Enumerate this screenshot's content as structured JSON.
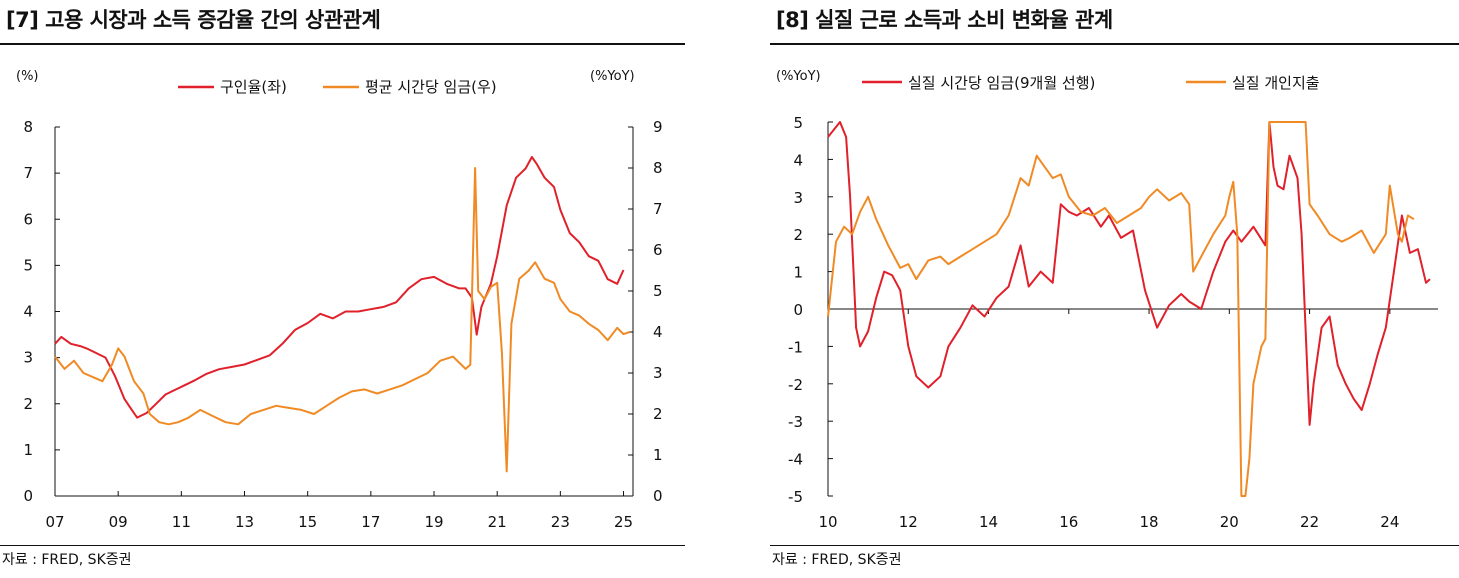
{
  "left": {
    "title": "[7] 고용 시장과 소득 증감율 간의 상관관계",
    "source": "자료 : FRED, SK증권",
    "chart_data": {
      "type": "line",
      "unit_left": "(%)",
      "unit_right": "(%YoY)",
      "ylim_left": [
        0,
        8
      ],
      "ylim_right": [
        0,
        9
      ],
      "xlim": [
        2007,
        2025.3
      ],
      "x_ticks": [
        "07",
        "09",
        "11",
        "13",
        "15",
        "17",
        "19",
        "21",
        "23",
        "25"
      ],
      "x_tick_values": [
        2007,
        2009,
        2011,
        2013,
        2015,
        2017,
        2019,
        2021,
        2023,
        2025
      ],
      "y_ticks_left": [
        "0",
        "1",
        "2",
        "3",
        "4",
        "5",
        "6",
        "7",
        "8"
      ],
      "y_ticks_right": [
        "0",
        "1",
        "2",
        "3",
        "4",
        "5",
        "6",
        "7",
        "8",
        "9"
      ],
      "series": [
        {
          "name": "구인율(좌)",
          "axis": "left",
          "color": "#e0202b",
          "x": [
            2007.0,
            2007.2,
            2007.5,
            2007.8,
            2008.0,
            2008.3,
            2008.6,
            2008.9,
            2009.2,
            2009.4,
            2009.6,
            2009.9,
            2010.2,
            2010.5,
            2010.8,
            2011.1,
            2011.4,
            2011.8,
            2012.2,
            2012.6,
            2013.0,
            2013.4,
            2013.8,
            2014.2,
            2014.6,
            2015.0,
            2015.4,
            2015.8,
            2016.2,
            2016.6,
            2017.0,
            2017.4,
            2017.8,
            2018.2,
            2018.6,
            2019.0,
            2019.4,
            2019.8,
            2020.0,
            2020.2,
            2020.35,
            2020.5,
            2020.8,
            2021.0,
            2021.3,
            2021.6,
            2021.9,
            2022.1,
            2022.25,
            2022.5,
            2022.8,
            2023.0,
            2023.3,
            2023.6,
            2023.9,
            2024.2,
            2024.5,
            2024.8,
            2025.0
          ],
          "values": [
            3.3,
            3.45,
            3.3,
            3.25,
            3.2,
            3.1,
            3.0,
            2.6,
            2.1,
            1.9,
            1.7,
            1.8,
            2.0,
            2.2,
            2.3,
            2.4,
            2.5,
            2.65,
            2.75,
            2.8,
            2.85,
            2.95,
            3.05,
            3.3,
            3.6,
            3.75,
            3.95,
            3.85,
            4.0,
            4.0,
            4.05,
            4.1,
            4.2,
            4.5,
            4.7,
            4.75,
            4.6,
            4.5,
            4.5,
            4.3,
            3.5,
            4.1,
            4.6,
            5.2,
            6.3,
            6.9,
            7.1,
            7.35,
            7.2,
            6.9,
            6.7,
            6.2,
            5.7,
            5.5,
            5.2,
            5.1,
            4.7,
            4.6,
            4.9
          ]
        },
        {
          "name": "평균 시간당 임금(우)",
          "axis": "right",
          "color": "#f08a24",
          "x": [
            2007.0,
            2007.3,
            2007.6,
            2007.9,
            2008.2,
            2008.5,
            2008.8,
            2009.0,
            2009.2,
            2009.5,
            2009.8,
            2010.0,
            2010.3,
            2010.6,
            2010.9,
            2011.2,
            2011.6,
            2012.0,
            2012.4,
            2012.8,
            2013.2,
            2013.6,
            2014.0,
            2014.4,
            2014.8,
            2015.2,
            2015.6,
            2016.0,
            2016.4,
            2016.8,
            2017.2,
            2017.6,
            2018.0,
            2018.4,
            2018.8,
            2019.2,
            2019.6,
            2020.0,
            2020.15,
            2020.3,
            2020.4,
            2020.6,
            2020.8,
            2021.0,
            2021.15,
            2021.3,
            2021.45,
            2021.7,
            2022.0,
            2022.2,
            2022.5,
            2022.8,
            2023.0,
            2023.3,
            2023.6,
            2023.9,
            2024.2,
            2024.5,
            2024.8,
            2025.0,
            2025.2
          ],
          "values": [
            3.4,
            3.1,
            3.3,
            3.0,
            2.9,
            2.8,
            3.2,
            3.6,
            3.4,
            2.8,
            2.5,
            2.0,
            1.8,
            1.75,
            1.8,
            1.9,
            2.1,
            1.95,
            1.8,
            1.75,
            2.0,
            2.1,
            2.2,
            2.15,
            2.1,
            2.0,
            2.2,
            2.4,
            2.55,
            2.6,
            2.5,
            2.6,
            2.7,
            2.85,
            3.0,
            3.3,
            3.4,
            3.1,
            3.2,
            8.0,
            5.0,
            4.8,
            5.1,
            5.2,
            3.5,
            0.6,
            4.2,
            5.3,
            5.5,
            5.7,
            5.3,
            5.2,
            4.8,
            4.5,
            4.4,
            4.2,
            4.05,
            3.8,
            4.1,
            3.95,
            4.0
          ]
        }
      ]
    }
  },
  "right": {
    "title": "[8] 실질 근로 소득과 소비 변화율 관계",
    "source": "자료 : FRED, SK증권",
    "chart_data": {
      "type": "line",
      "unit_left": "(%YoY)",
      "ylim": [
        -5,
        5
      ],
      "xlim": [
        2010,
        2025.2
      ],
      "x_ticks": [
        "10",
        "12",
        "14",
        "16",
        "18",
        "20",
        "22",
        "24"
      ],
      "x_tick_values": [
        2010,
        2012,
        2014,
        2016,
        2018,
        2020,
        2022,
        2024
      ],
      "y_ticks": [
        "-5",
        "-4",
        "-3",
        "-2",
        "-1",
        "0",
        "1",
        "2",
        "3",
        "4",
        "5"
      ],
      "series": [
        {
          "name": "실질 시간당 임금(9개월 선행)",
          "color": "#e0202b",
          "x": [
            2010.0,
            2010.15,
            2010.3,
            2010.45,
            2010.55,
            2010.7,
            2010.8,
            2011.0,
            2011.2,
            2011.4,
            2011.6,
            2011.8,
            2012.0,
            2012.2,
            2012.5,
            2012.8,
            2013.0,
            2013.3,
            2013.6,
            2013.9,
            2014.2,
            2014.5,
            2014.8,
            2015.0,
            2015.3,
            2015.6,
            2015.8,
            2016.0,
            2016.2,
            2016.5,
            2016.8,
            2017.0,
            2017.3,
            2017.6,
            2017.9,
            2018.2,
            2018.5,
            2018.8,
            2019.0,
            2019.3,
            2019.6,
            2019.9,
            2020.1,
            2020.3,
            2020.6,
            2020.9,
            2021.0,
            2021.1,
            2021.2,
            2021.35,
            2021.5,
            2021.7,
            2021.8,
            2022.0,
            2022.1,
            2022.3,
            2022.5,
            2022.7,
            2022.9,
            2023.1,
            2023.3,
            2023.5,
            2023.7,
            2023.9,
            2024.1,
            2024.3,
            2024.5,
            2024.7,
            2024.9,
            2025.0
          ],
          "values": [
            4.6,
            4.8,
            5.0,
            4.6,
            3.0,
            -0.5,
            -1.0,
            -0.6,
            0.3,
            1.0,
            0.9,
            0.5,
            -1.0,
            -1.8,
            -2.1,
            -1.8,
            -1.0,
            -0.5,
            0.1,
            -0.2,
            0.3,
            0.6,
            1.7,
            0.6,
            1.0,
            0.7,
            2.8,
            2.6,
            2.5,
            2.7,
            2.2,
            2.5,
            1.9,
            2.1,
            0.5,
            -0.5,
            0.1,
            0.4,
            0.2,
            0.0,
            1.0,
            1.8,
            2.1,
            1.8,
            2.2,
            1.7,
            5.0,
            3.8,
            3.3,
            3.2,
            4.1,
            3.5,
            2.0,
            -3.1,
            -2.0,
            -0.5,
            -0.2,
            -1.5,
            -2.0,
            -2.4,
            -2.7,
            -2.0,
            -1.2,
            -0.5,
            1.0,
            2.5,
            1.5,
            1.6,
            0.7,
            0.8
          ]
        },
        {
          "name": "실질 개인지출",
          "color": "#f08a24",
          "x": [
            2010.0,
            2010.2,
            2010.4,
            2010.6,
            2010.8,
            2011.0,
            2011.2,
            2011.5,
            2011.8,
            2012.0,
            2012.2,
            2012.5,
            2012.8,
            2013.0,
            2013.3,
            2013.6,
            2013.9,
            2014.2,
            2014.5,
            2014.8,
            2015.0,
            2015.2,
            2015.4,
            2015.6,
            2015.8,
            2016.0,
            2016.3,
            2016.6,
            2016.9,
            2017.2,
            2017.5,
            2017.8,
            2018.0,
            2018.2,
            2018.5,
            2018.8,
            2019.0,
            2019.1,
            2019.3,
            2019.6,
            2019.9,
            2020.0,
            2020.1,
            2020.2,
            2020.3,
            2020.4,
            2020.5,
            2020.6,
            2020.8,
            2020.9,
            2021.0,
            2021.05,
            2021.15,
            2021.3,
            2021.45,
            2021.7,
            2021.9,
            2022.0,
            2022.2,
            2022.5,
            2022.8,
            2023.0,
            2023.3,
            2023.6,
            2023.9,
            2024.0,
            2024.2,
            2024.3,
            2024.45,
            2024.6
          ],
          "values": [
            -0.2,
            1.8,
            2.2,
            2.0,
            2.6,
            3.0,
            2.4,
            1.7,
            1.1,
            1.2,
            0.8,
            1.3,
            1.4,
            1.2,
            1.4,
            1.6,
            1.8,
            2.0,
            2.5,
            3.5,
            3.3,
            4.1,
            3.8,
            3.5,
            3.6,
            3.0,
            2.6,
            2.5,
            2.7,
            2.3,
            2.5,
            2.7,
            3.0,
            3.2,
            2.9,
            3.1,
            2.8,
            1.0,
            1.4,
            2.0,
            2.5,
            3.0,
            3.4,
            2.0,
            -5.0,
            -5.0,
            -4.0,
            -2.0,
            -1.0,
            -0.8,
            5.0,
            5.0,
            5.0,
            5.0,
            5.0,
            5.0,
            5.0,
            2.8,
            2.5,
            2.0,
            1.8,
            1.9,
            2.1,
            1.5,
            2.0,
            3.3,
            2.0,
            1.8,
            2.5,
            2.4
          ]
        }
      ]
    }
  }
}
